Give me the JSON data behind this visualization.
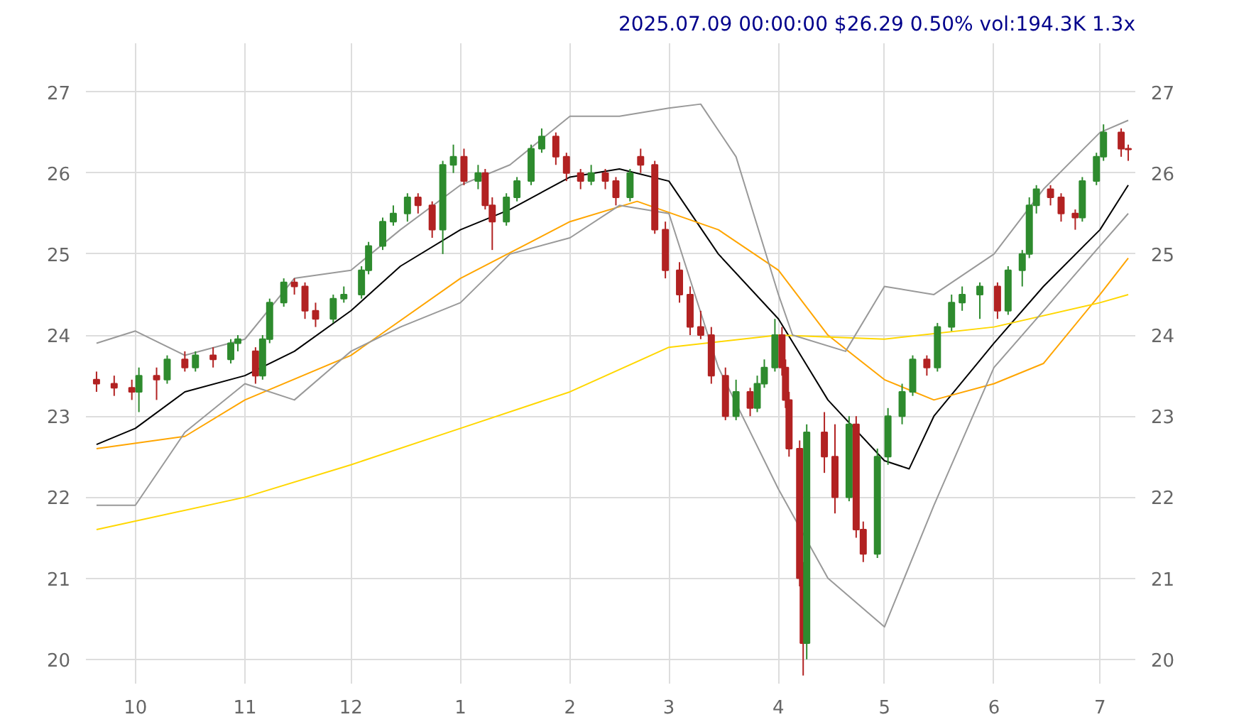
{
  "chart_data": {
    "type": "candlestick",
    "title": "2025.07.09 00:00:00 $26.29 0.50% vol:194.3K 1.3x",
    "x": [
      "2024-09-20",
      "2024-09-25",
      "2024-09-30",
      "2024-10-02",
      "2024-10-07",
      "2024-10-10",
      "2024-10-15",
      "2024-10-18",
      "2024-10-23",
      "2024-10-28",
      "2024-10-30",
      "2024-11-04",
      "2024-11-06",
      "2024-11-08",
      "2024-11-12",
      "2024-11-15",
      "2024-11-18",
      "2024-11-21",
      "2024-11-26",
      "2024-11-29",
      "2024-12-04",
      "2024-12-06",
      "2024-12-10",
      "2024-12-13",
      "2024-12-17",
      "2024-12-20",
      "2024-12-24",
      "2024-12-27",
      "2024-12-30",
      "2025-01-02",
      "2025-01-06",
      "2025-01-08",
      "2025-01-10",
      "2025-01-14",
      "2025-01-17",
      "2025-01-21",
      "2025-01-24",
      "2025-01-28",
      "2025-01-31",
      "2025-02-04",
      "2025-02-07",
      "2025-02-11",
      "2025-02-14",
      "2025-02-18",
      "2025-02-21",
      "2025-02-25",
      "2025-02-28",
      "2025-03-04",
      "2025-03-07",
      "2025-03-10",
      "2025-03-13",
      "2025-03-17",
      "2025-03-20",
      "2025-03-24",
      "2025-03-26",
      "2025-03-28",
      "2025-03-31",
      "2025-04-02",
      "2025-04-03",
      "2025-04-04",
      "2025-04-07",
      "2025-04-08",
      "2025-04-09",
      "2025-04-14",
      "2025-04-17",
      "2025-04-21",
      "2025-04-23",
      "2025-04-25",
      "2025-04-29",
      "2025-05-02",
      "2025-05-06",
      "2025-05-09",
      "2025-05-13",
      "2025-05-16",
      "2025-05-20",
      "2025-05-23",
      "2025-05-28",
      "2025-06-02",
      "2025-06-05",
      "2025-06-09",
      "2025-06-11",
      "2025-06-13",
      "2025-06-17",
      "2025-06-20",
      "2025-06-24",
      "2025-06-26",
      "2025-06-30",
      "2025-07-02",
      "2025-07-07",
      "2025-07-09"
    ],
    "ohlc": [
      [
        23.45,
        23.55,
        23.3,
        23.4
      ],
      [
        23.4,
        23.5,
        23.25,
        23.35
      ],
      [
        23.35,
        23.45,
        23.2,
        23.3
      ],
      [
        23.3,
        23.6,
        23.05,
        23.5
      ],
      [
        23.5,
        23.6,
        23.2,
        23.45
      ],
      [
        23.45,
        23.75,
        23.4,
        23.7
      ],
      [
        23.7,
        23.8,
        23.55,
        23.6
      ],
      [
        23.6,
        23.8,
        23.55,
        23.75
      ],
      [
        23.75,
        23.85,
        23.6,
        23.7
      ],
      [
        23.7,
        23.95,
        23.65,
        23.9
      ],
      [
        23.9,
        24.0,
        23.8,
        23.95
      ],
      [
        23.8,
        23.85,
        23.4,
        23.5
      ],
      [
        23.5,
        24.0,
        23.45,
        23.95
      ],
      [
        23.95,
        24.45,
        23.9,
        24.4
      ],
      [
        24.4,
        24.7,
        24.35,
        24.65
      ],
      [
        24.65,
        24.7,
        24.5,
        24.6
      ],
      [
        24.6,
        24.65,
        24.2,
        24.3
      ],
      [
        24.3,
        24.4,
        24.1,
        24.2
      ],
      [
        24.2,
        24.5,
        24.15,
        24.45
      ],
      [
        24.45,
        24.6,
        24.4,
        24.5
      ],
      [
        24.5,
        24.85,
        24.45,
        24.8
      ],
      [
        24.8,
        25.15,
        24.75,
        25.1
      ],
      [
        25.1,
        25.45,
        25.05,
        25.4
      ],
      [
        25.4,
        25.6,
        25.35,
        25.5
      ],
      [
        25.5,
        25.75,
        25.4,
        25.7
      ],
      [
        25.7,
        25.75,
        25.5,
        25.6
      ],
      [
        25.6,
        25.65,
        25.2,
        25.3
      ],
      [
        25.3,
        26.15,
        25.0,
        26.1
      ],
      [
        26.1,
        26.35,
        26.0,
        26.2
      ],
      [
        26.2,
        26.3,
        25.85,
        25.9
      ],
      [
        25.9,
        26.1,
        25.8,
        26.0
      ],
      [
        26.0,
        26.05,
        25.55,
        25.6
      ],
      [
        25.6,
        25.7,
        25.05,
        25.4
      ],
      [
        25.4,
        25.75,
        25.35,
        25.7
      ],
      [
        25.7,
        25.95,
        25.65,
        25.9
      ],
      [
        25.9,
        26.35,
        25.85,
        26.3
      ],
      [
        26.3,
        26.55,
        26.25,
        26.45
      ],
      [
        26.45,
        26.5,
        26.1,
        26.2
      ],
      [
        26.2,
        26.25,
        25.9,
        26.0
      ],
      [
        26.0,
        26.05,
        25.8,
        25.9
      ],
      [
        25.9,
        26.1,
        25.85,
        26.0
      ],
      [
        26.0,
        26.05,
        25.8,
        25.9
      ],
      [
        25.9,
        25.95,
        25.6,
        25.7
      ],
      [
        25.7,
        26.05,
        25.65,
        26.0
      ],
      [
        26.2,
        26.3,
        26.0,
        26.1
      ],
      [
        26.1,
        26.15,
        25.25,
        25.3
      ],
      [
        25.3,
        25.4,
        24.7,
        24.8
      ],
      [
        24.8,
        24.9,
        24.4,
        24.5
      ],
      [
        24.5,
        24.6,
        24.0,
        24.1
      ],
      [
        24.1,
        24.3,
        23.95,
        24.0
      ],
      [
        24.0,
        24.1,
        23.4,
        23.5
      ],
      [
        23.5,
        23.6,
        22.95,
        23.0
      ],
      [
        23.0,
        23.45,
        22.95,
        23.3
      ],
      [
        23.3,
        23.35,
        23.0,
        23.1
      ],
      [
        23.1,
        23.5,
        23.05,
        23.4
      ],
      [
        23.4,
        23.7,
        23.35,
        23.6
      ],
      [
        23.6,
        24.2,
        23.55,
        24.0
      ],
      [
        24.0,
        24.1,
        23.5,
        23.6
      ],
      [
        23.6,
        23.7,
        23.1,
        23.2
      ],
      [
        23.2,
        23.3,
        22.5,
        22.6
      ],
      [
        22.6,
        22.7,
        20.9,
        21.0
      ],
      [
        21.0,
        21.2,
        19.8,
        20.2
      ],
      [
        20.2,
        22.9,
        20.0,
        22.8
      ],
      [
        22.8,
        23.05,
        22.3,
        22.5
      ],
      [
        22.5,
        22.9,
        21.8,
        22.0
      ],
      [
        22.0,
        23.0,
        21.95,
        22.9
      ],
      [
        22.9,
        23.0,
        21.5,
        21.6
      ],
      [
        21.6,
        21.7,
        21.2,
        21.3
      ],
      [
        21.3,
        22.6,
        21.25,
        22.5
      ],
      [
        22.5,
        23.1,
        22.4,
        23.0
      ],
      [
        23.0,
        23.4,
        22.9,
        23.3
      ],
      [
        23.3,
        23.75,
        23.25,
        23.7
      ],
      [
        23.7,
        23.75,
        23.5,
        23.6
      ],
      [
        23.6,
        24.15,
        23.55,
        24.1
      ],
      [
        24.1,
        24.5,
        24.05,
        24.4
      ],
      [
        24.4,
        24.6,
        24.3,
        24.5
      ],
      [
        24.5,
        24.65,
        24.2,
        24.6
      ],
      [
        24.6,
        24.65,
        24.2,
        24.3
      ],
      [
        24.3,
        24.85,
        24.25,
        24.8
      ],
      [
        24.8,
        25.05,
        24.6,
        25.0
      ],
      [
        25.0,
        25.7,
        24.95,
        25.6
      ],
      [
        25.6,
        25.85,
        25.5,
        25.8
      ],
      [
        25.8,
        25.85,
        25.6,
        25.7
      ],
      [
        25.7,
        25.75,
        25.4,
        25.5
      ],
      [
        25.5,
        25.55,
        25.3,
        25.45
      ],
      [
        25.45,
        25.95,
        25.4,
        25.9
      ],
      [
        25.9,
        26.25,
        25.85,
        26.2
      ],
      [
        26.2,
        26.6,
        26.15,
        26.5
      ],
      [
        26.5,
        26.55,
        26.2,
        26.3
      ],
      [
        26.3,
        26.35,
        26.15,
        26.29
      ]
    ],
    "series": [
      {
        "type": "line",
        "color": "#000000",
        "x": [
          "2024-09-20",
          "2024-10-01",
          "2024-10-15",
          "2024-11-01",
          "2024-11-15",
          "2024-12-01",
          "2024-12-15",
          "2025-01-01",
          "2025-01-15",
          "2025-02-01",
          "2025-02-15",
          "2025-03-01",
          "2025-03-15",
          "2025-04-01",
          "2025-04-15",
          "2025-05-01",
          "2025-05-08",
          "2025-05-15",
          "2025-06-01",
          "2025-06-15",
          "2025-07-01",
          "2025-07-09"
        ],
        "values": [
          22.65,
          22.85,
          23.3,
          23.5,
          23.8,
          24.3,
          24.85,
          25.3,
          25.55,
          25.95,
          26.05,
          25.9,
          25.0,
          24.2,
          23.2,
          22.45,
          22.35,
          23.0,
          23.9,
          24.6,
          25.3,
          25.85
        ]
      },
      {
        "type": "line",
        "color": "#ffa500",
        "x": [
          "2024-09-20",
          "2024-10-15",
          "2024-11-01",
          "2024-12-01",
          "2025-01-01",
          "2025-02-01",
          "2025-02-20",
          "2025-03-15",
          "2025-04-01",
          "2025-04-15",
          "2025-05-01",
          "2025-05-15",
          "2025-06-01",
          "2025-06-15",
          "2025-07-01",
          "2025-07-09"
        ],
        "values": [
          22.6,
          22.75,
          23.2,
          23.75,
          24.7,
          25.4,
          25.65,
          25.3,
          24.8,
          24.0,
          23.45,
          23.2,
          23.4,
          23.65,
          24.5,
          24.95
        ]
      },
      {
        "type": "line",
        "color": "#ffd700",
        "x": [
          "2024-09-20",
          "2024-11-01",
          "2024-12-01",
          "2025-01-01",
          "2025-02-01",
          "2025-03-01",
          "2025-04-01",
          "2025-05-01",
          "2025-06-01",
          "2025-07-01",
          "2025-07-09"
        ],
        "values": [
          21.6,
          22.0,
          22.4,
          22.85,
          23.3,
          23.85,
          24.0,
          23.95,
          24.1,
          24.4,
          24.5
        ]
      },
      {
        "type": "line",
        "color": "#999999",
        "x": [
          "2024-09-20",
          "2024-10-01",
          "2024-10-15",
          "2024-11-01",
          "2024-11-15",
          "2024-12-01",
          "2024-12-15",
          "2025-01-01",
          "2025-01-15",
          "2025-02-01",
          "2025-02-15",
          "2025-03-01",
          "2025-03-10",
          "2025-03-20",
          "2025-04-01",
          "2025-04-05",
          "2025-04-20",
          "2025-05-01",
          "2025-05-15",
          "2025-06-01",
          "2025-06-15",
          "2025-07-01",
          "2025-07-09"
        ],
        "values": [
          23.9,
          24.05,
          23.75,
          23.95,
          24.7,
          24.8,
          25.3,
          25.85,
          26.1,
          26.7,
          26.7,
          26.8,
          26.85,
          26.2,
          24.5,
          24.0,
          23.8,
          24.6,
          24.5,
          25.0,
          25.8,
          26.5,
          26.65
        ]
      },
      {
        "type": "line",
        "color": "#999999",
        "x": [
          "2024-09-20",
          "2024-10-01",
          "2024-10-15",
          "2024-11-01",
          "2024-11-15",
          "2024-12-01",
          "2024-12-15",
          "2025-01-01",
          "2025-01-15",
          "2025-02-01",
          "2025-02-15",
          "2025-03-01",
          "2025-03-15",
          "2025-04-01",
          "2025-04-15",
          "2025-05-01",
          "2025-05-15",
          "2025-06-01",
          "2025-06-15",
          "2025-07-01",
          "2025-07-09"
        ],
        "values": [
          21.9,
          21.9,
          22.8,
          23.4,
          23.2,
          23.8,
          24.1,
          24.4,
          25.0,
          25.2,
          25.6,
          25.5,
          23.6,
          22.1,
          21.0,
          20.4,
          21.9,
          23.6,
          24.3,
          25.1,
          25.5
        ]
      }
    ],
    "xlim": [
      "2024-09-17",
      "2025-07-11"
    ],
    "xticks": [
      {
        "value": "2024-10-01",
        "label": "10"
      },
      {
        "value": "2024-11-01",
        "label": "11"
      },
      {
        "value": "2024-12-01",
        "label": "12"
      },
      {
        "value": "2025-01-01",
        "label": "1"
      },
      {
        "value": "2025-02-01",
        "label": "2"
      },
      {
        "value": "2025-03-01",
        "label": "3"
      },
      {
        "value": "2025-04-01",
        "label": "4"
      },
      {
        "value": "2025-05-01",
        "label": "5"
      },
      {
        "value": "2025-06-01",
        "label": "6"
      },
      {
        "value": "2025-07-01",
        "label": "7"
      }
    ],
    "ylim": [
      19.7,
      27.6
    ],
    "yticks": [
      20,
      21,
      22,
      23,
      24,
      25,
      26,
      27
    ],
    "y2lim": [
      19.7,
      27.6
    ],
    "y2ticks": [
      20,
      21,
      22,
      23,
      24,
      25,
      26,
      27
    ],
    "grid": true
  }
}
